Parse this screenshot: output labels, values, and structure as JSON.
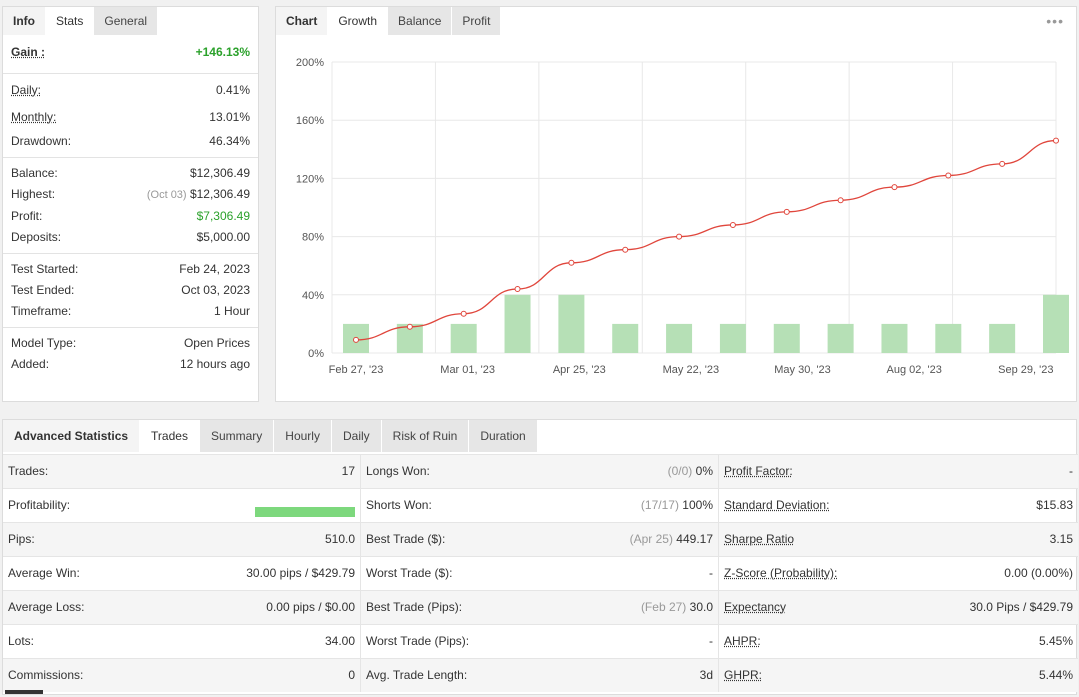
{
  "info": {
    "tabs": [
      "Info",
      "Stats",
      "General"
    ],
    "rows": [
      {
        "label": "Gain :",
        "value": "+146.13%"
      },
      {
        "label": "Daily:",
        "value": "0.41%"
      },
      {
        "label": "Monthly:",
        "value": "13.01%"
      },
      {
        "label": "Drawdown:",
        "value": "46.34%"
      },
      {
        "label": "Balance:",
        "value": "$12,306.49"
      },
      {
        "label": "Highest:",
        "note": "(Oct 03)",
        "value": "$12,306.49"
      },
      {
        "label": "Profit:",
        "value": "$7,306.49"
      },
      {
        "label": "Deposits:",
        "value": "$5,000.00"
      },
      {
        "label": "Test Started:",
        "value": "Feb 24, 2023"
      },
      {
        "label": "Test Ended:",
        "value": "Oct 03, 2023"
      },
      {
        "label": "Timeframe:",
        "value": "1 Hour"
      },
      {
        "label": "Model Type:",
        "value": "Open Prices"
      },
      {
        "label": "Added:",
        "value": "12 hours ago"
      }
    ]
  },
  "chart": {
    "tabs": [
      "Chart",
      "Growth",
      "Balance",
      "Profit"
    ],
    "menu_icon": "dots-menu-icon"
  },
  "chart_data": {
    "type": "line",
    "categories": [
      "Feb 27, '23",
      "Mar 01, '23",
      "Apr 25, '23",
      "May 22, '23",
      "May 30, '23",
      "Aug 02, '23",
      "Sep 29, '23"
    ],
    "y_ticks": [
      "200%",
      "160%",
      "120%",
      "80%",
      "40%",
      "0%"
    ],
    "ylim": [
      0,
      200
    ],
    "line": [
      9,
      18,
      27,
      44,
      62,
      71,
      80,
      88,
      97,
      105,
      114,
      122,
      130,
      146
    ],
    "bars": [
      20,
      20,
      20,
      40,
      40,
      20,
      20,
      20,
      20,
      20,
      20,
      20,
      20,
      40
    ],
    "line_color": "#e0463c",
    "bar_color": "#b6e0b6"
  },
  "adv": {
    "tabs": [
      "Advanced Statistics",
      "Trades",
      "Summary",
      "Hourly",
      "Daily",
      "Risk of Ruin",
      "Duration"
    ],
    "rows": [
      [
        {
          "label": "Trades:",
          "value": "17"
        },
        {
          "label": "Longs Won:",
          "note": "(0/0)",
          "value": "0%"
        },
        {
          "label": "Profit Factor:",
          "value": "-"
        }
      ],
      [
        {
          "label": "Profitability:",
          "value": ""
        },
        {
          "label": "Shorts Won:",
          "note": "(17/17)",
          "value": "100%"
        },
        {
          "label": "Standard Deviation:",
          "value": "$15.83"
        }
      ],
      [
        {
          "label": "Pips:",
          "value": "510.0"
        },
        {
          "label": "Best Trade ($):",
          "note": "(Apr 25)",
          "value": "449.17"
        },
        {
          "label": "Sharpe Ratio",
          "value": "3.15"
        }
      ],
      [
        {
          "label": "Average Win:",
          "value": "30.00 pips / $429.79"
        },
        {
          "label": "Worst Trade ($):",
          "value": "-"
        },
        {
          "label": "Z-Score (Probability):",
          "value": "0.00 (0.00%)"
        }
      ],
      [
        {
          "label": "Average Loss:",
          "value": "0.00 pips / $0.00"
        },
        {
          "label": "Best Trade (Pips):",
          "note": "(Feb 27)",
          "value": "30.0"
        },
        {
          "label": "Expectancy",
          "value": "30.0 Pips / $429.79"
        }
      ],
      [
        {
          "label": "Lots:",
          "value": "34.00"
        },
        {
          "label": "Worst Trade (Pips):",
          "value": "-"
        },
        {
          "label": "AHPR:",
          "value": "5.45%"
        }
      ],
      [
        {
          "label": "Commissions:",
          "value": "0"
        },
        {
          "label": "Avg. Trade Length:",
          "value": "3d"
        },
        {
          "label": "GHPR:",
          "value": "5.44%"
        }
      ]
    ],
    "profitability": 1.0
  }
}
